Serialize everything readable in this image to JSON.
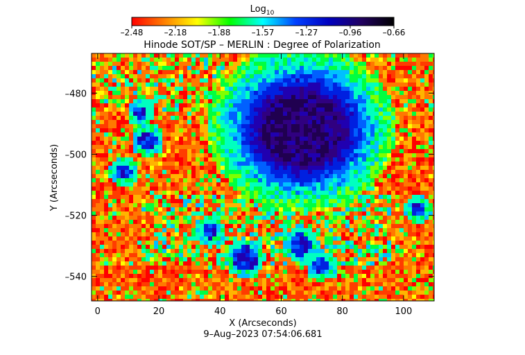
{
  "figure": {
    "title": "Hinode SOT/SP – MERLIN : Degree of Polarization",
    "timestamp": "9–Aug–2023 07:54:06.681",
    "colorbar": {
      "label_base": "Log",
      "label_sub": "10",
      "ticks": [
        "–2.48",
        "–2.18",
        "–1.88",
        "–1.57",
        "–1.27",
        "–0.96",
        "–0.66"
      ],
      "range": [
        -2.48,
        -0.66
      ],
      "colors": [
        "#ff0000",
        "#ff8000",
        "#ffff00",
        "#00ff00",
        "#00ffff",
        "#0040ff",
        "#0000c0",
        "#200060",
        "#000000"
      ]
    },
    "xaxis": {
      "label": "X (Arcseconds)",
      "range": [
        -2,
        110
      ],
      "ticks": [
        {
          "v": 0,
          "t": "0"
        },
        {
          "v": 20,
          "t": "20"
        },
        {
          "v": 40,
          "t": "40"
        },
        {
          "v": 60,
          "t": "60"
        },
        {
          "v": 80,
          "t": "80"
        },
        {
          "v": 100,
          "t": "100"
        }
      ]
    },
    "yaxis": {
      "label": "Y (Arcseconds)",
      "range": [
        -548,
        -467
      ],
      "ticks": [
        {
          "v": -480,
          "t": "–480"
        },
        {
          "v": -500,
          "t": "–500"
        },
        {
          "v": -520,
          "t": "–520"
        },
        {
          "v": -540,
          "t": "–540"
        }
      ]
    },
    "map": {
      "umbra_center": {
        "x": 66,
        "y": -491
      },
      "umbra_radius": 11.5,
      "penumbra_radius": 18.5
    }
  }
}
